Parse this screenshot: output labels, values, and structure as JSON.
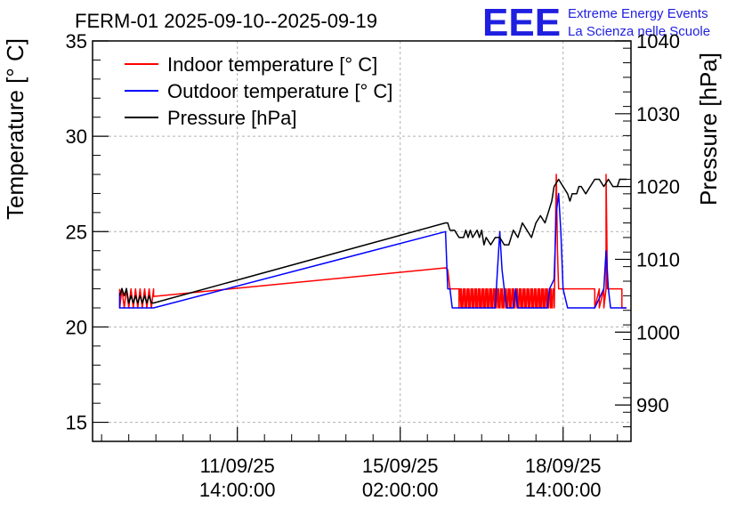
{
  "chart_data": {
    "type": "line",
    "title": "FERM-01 2025-09-10--2025-09-19",
    "logo": {
      "mark": "EEE",
      "line1": "Extreme Energy Events",
      "line2": "La Scienza nelle Scuole"
    },
    "ylabel_left": "Temperature [° C]",
    "ylabel_right": "Pressure [hPa]",
    "y_left": {
      "lim": [
        14,
        35
      ],
      "ticks": [
        15,
        20,
        25,
        30,
        35
      ]
    },
    "y_right": {
      "lim": [
        985,
        1040
      ],
      "ticks": [
        990,
        1000,
        1010,
        1020,
        1030,
        1040
      ]
    },
    "x": {
      "lim_hours": [
        -26,
        212
      ],
      "tick_labels": [
        {
          "hour": 38,
          "line1": "11/09/25",
          "line2": "14:00:00"
        },
        {
          "hour": 110,
          "line1": "15/09/25",
          "line2": "02:00:00"
        },
        {
          "hour": 182,
          "line1": "18/09/25",
          "line2": "14:00:00"
        }
      ],
      "minor_step_hours": 12
    },
    "series": [
      {
        "name": "Indoor temperature [° C]",
        "color": "#ff0000",
        "axis": "left",
        "noise": {
          "x_from": 136,
          "x_to": 178,
          "low": 21,
          "high": 22
        },
        "points": [
          [
            -14,
            22
          ],
          [
            -14,
            21
          ],
          [
            -13,
            22
          ],
          [
            -12,
            21
          ],
          [
            -11,
            22
          ],
          [
            -10,
            21
          ],
          [
            -9,
            22
          ],
          [
            -8,
            21
          ],
          [
            -7,
            22
          ],
          [
            -6,
            21
          ],
          [
            -5,
            22
          ],
          [
            -4,
            21
          ],
          [
            -3,
            22
          ],
          [
            -2,
            21
          ],
          [
            -1,
            22
          ],
          [
            0,
            21
          ],
          [
            1,
            22
          ],
          [
            1,
            21.6
          ],
          [
            130,
            23.1
          ],
          [
            131,
            23
          ],
          [
            132,
            22
          ],
          [
            136,
            22
          ],
          [
            178,
            22
          ],
          [
            178.5,
            24
          ],
          [
            179,
            28
          ],
          [
            179.5,
            24
          ],
          [
            180,
            22
          ],
          [
            196,
            22
          ],
          [
            196,
            21
          ],
          [
            198,
            22
          ],
          [
            198,
            21
          ],
          [
            200,
            22
          ],
          [
            200,
            21
          ],
          [
            201,
            22
          ],
          [
            201,
            28
          ],
          [
            201.6,
            22
          ],
          [
            208,
            22
          ],
          [
            208,
            21
          ],
          [
            210,
            21
          ]
        ]
      },
      {
        "name": "Outdoor temperature [° C]",
        "color": "#0000ff",
        "axis": "left",
        "points": [
          [
            -14,
            21.8
          ],
          [
            -14,
            21
          ],
          [
            0,
            21
          ],
          [
            1,
            21
          ],
          [
            130,
            25
          ],
          [
            131,
            22
          ],
          [
            132,
            22
          ],
          [
            133,
            21
          ],
          [
            152,
            21
          ],
          [
            153,
            23
          ],
          [
            154,
            25
          ],
          [
            155,
            23
          ],
          [
            156,
            22
          ],
          [
            157,
            21
          ],
          [
            160,
            21
          ],
          [
            161,
            22
          ],
          [
            162,
            21
          ],
          [
            175,
            21
          ],
          [
            176,
            22
          ],
          [
            178,
            22.5
          ],
          [
            179,
            26
          ],
          [
            180,
            27
          ],
          [
            181,
            25
          ],
          [
            182,
            22
          ],
          [
            184,
            21
          ],
          [
            196,
            21
          ],
          [
            198,
            21.5
          ],
          [
            200,
            22
          ],
          [
            201,
            24
          ],
          [
            202,
            22
          ],
          [
            203,
            21
          ],
          [
            210,
            21
          ]
        ]
      },
      {
        "name": "Pressure [hPa]",
        "color": "#000000",
        "axis": "right",
        "points": [
          [
            -14,
            1005
          ],
          [
            -13,
            1006
          ],
          [
            -12,
            1005
          ],
          [
            -11,
            1006
          ],
          [
            -10,
            1004
          ],
          [
            -9,
            1005
          ],
          [
            -8,
            1004
          ],
          [
            -7,
            1005
          ],
          [
            -6,
            1004
          ],
          [
            -5,
            1005
          ],
          [
            -4,
            1004
          ],
          [
            -3,
            1005
          ],
          [
            -2,
            1004
          ],
          [
            -1,
            1005
          ],
          [
            0,
            1004
          ],
          [
            1,
            1004
          ],
          [
            130,
            1015
          ],
          [
            131,
            1015
          ],
          [
            132,
            1014
          ],
          [
            134,
            1014
          ],
          [
            136,
            1013
          ],
          [
            138,
            1013
          ],
          [
            139,
            1014
          ],
          [
            140,
            1013
          ],
          [
            141,
            1014
          ],
          [
            142,
            1013
          ],
          [
            144,
            1014
          ],
          [
            145,
            1013
          ],
          [
            146,
            1014
          ],
          [
            147,
            1012
          ],
          [
            148,
            1013
          ],
          [
            150,
            1012
          ],
          [
            152,
            1013
          ],
          [
            154,
            1013
          ],
          [
            156,
            1012
          ],
          [
            158,
            1012
          ],
          [
            160,
            1014
          ],
          [
            162,
            1013
          ],
          [
            164,
            1015
          ],
          [
            166,
            1014
          ],
          [
            168,
            1013
          ],
          [
            170,
            1015
          ],
          [
            172,
            1016
          ],
          [
            174,
            1015
          ],
          [
            176,
            1017
          ],
          [
            177,
            1018
          ],
          [
            178,
            1020
          ],
          [
            180,
            1021
          ],
          [
            182,
            1020
          ],
          [
            184,
            1019
          ],
          [
            185,
            1018
          ],
          [
            186,
            1019
          ],
          [
            188,
            1019
          ],
          [
            189,
            1020
          ],
          [
            190,
            1020
          ],
          [
            192,
            1019
          ],
          [
            194,
            1020
          ],
          [
            196,
            1021
          ],
          [
            198,
            1021
          ],
          [
            200,
            1020
          ],
          [
            202,
            1021
          ],
          [
            204,
            1020
          ],
          [
            206,
            1020
          ],
          [
            207,
            1021
          ],
          [
            210,
            1021
          ]
        ]
      }
    ]
  }
}
